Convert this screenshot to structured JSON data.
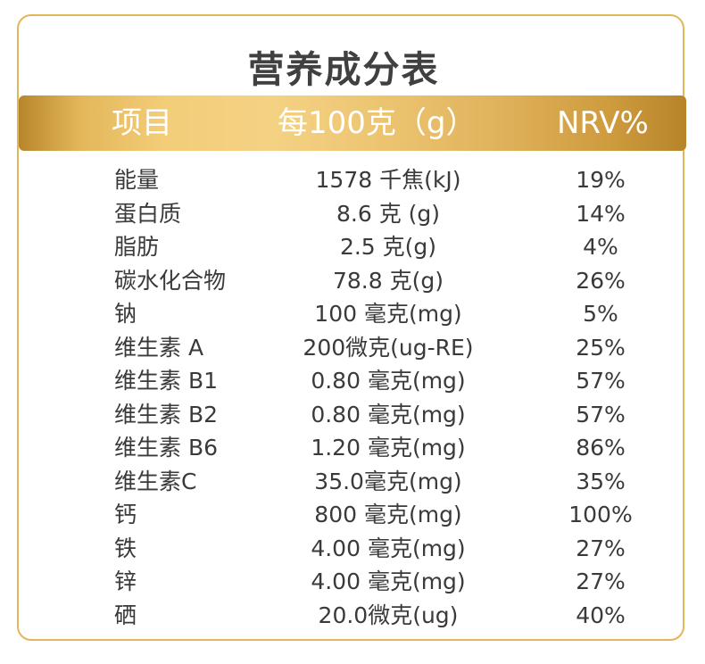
{
  "table": {
    "title": "营养成分表",
    "headers": {
      "item": "项目",
      "per100": "每100克（g）",
      "nrv": "NRV%"
    },
    "rows": [
      {
        "name": "能量",
        "amount": "1578 千焦(kJ)",
        "nrv": "19%"
      },
      {
        "name": "蛋白质",
        "amount": "8.6 克 (g)",
        "nrv": "14%"
      },
      {
        "name": "脂肪",
        "amount": "2.5 克(g)",
        "nrv": "4%"
      },
      {
        "name": "碳水化合物",
        "amount": "78.8 克(g)",
        "nrv": "26%"
      },
      {
        "name": "钠",
        "amount": "100 毫克(mg)",
        "nrv": "5%"
      },
      {
        "name": "维生素 A",
        "amount": "200微克(ug-RE)",
        "nrv": "25%"
      },
      {
        "name": "维生素 B1",
        "amount": "0.80 毫克(mg)",
        "nrv": "57%"
      },
      {
        "name": "维生素 B2",
        "amount": "0.80 毫克(mg)",
        "nrv": "57%"
      },
      {
        "name": "维生素 B6",
        "amount": "1.20 毫克(mg)",
        "nrv": "86%"
      },
      {
        "name": "维生素C",
        "amount": "35.0毫克(mg)",
        "nrv": "35%"
      },
      {
        "name": "钙",
        "amount": "800 毫克(mg)",
        "nrv": "100%"
      },
      {
        "name": "铁",
        "amount": "4.00 毫克(mg)",
        "nrv": "27%"
      },
      {
        "name": "锌",
        "amount": "4.00 毫克(mg)",
        "nrv": "27%"
      },
      {
        "name": "硒",
        "amount": "20.0微克(ug)",
        "nrv": "40%"
      }
    ]
  },
  "colors": {
    "border": "#e2b65a",
    "header_gold": "#f3cd78",
    "title_text": "#404040",
    "body_text": "#3a3a3a"
  }
}
